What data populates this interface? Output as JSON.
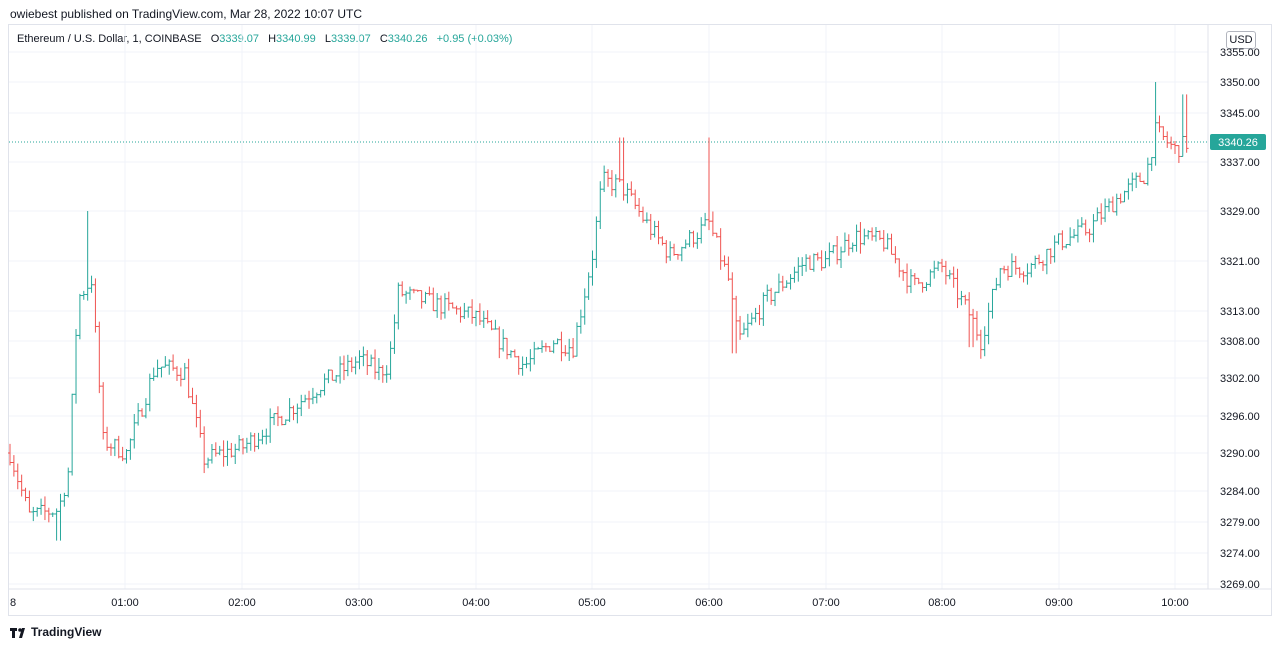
{
  "header": {
    "published_text": "owiebest published on TradingView.com, Mar 28, 2022 10:07 UTC"
  },
  "legend": {
    "symbol": "Ethereum / U.S. Dollar, 1, COINBASE",
    "open_label": "O",
    "open": "3339.07",
    "high_label": "H",
    "high": "3340.99",
    "low_label": "L",
    "low": "3339.07",
    "close_label": "C",
    "close": "3340.26",
    "change": "+0.95 (+0.03%)"
  },
  "currency_button": "USD",
  "footer": {
    "brand": "TradingView"
  },
  "colors": {
    "up": "#26a69a",
    "down": "#ef5350",
    "grid": "#f0f3fa",
    "price_line": "#26a69a"
  },
  "chart_data": {
    "type": "line",
    "style": "ohlc-bars",
    "title": "Ethereum / U.S. Dollar, 1, COINBASE",
    "ylabel": "USD",
    "y_ticks": [
      "3355.00",
      "3350.00",
      "3345.00",
      "3337.00",
      "3329.00",
      "3321.00",
      "3313.00",
      "3308.00",
      "3302.00",
      "3296.00",
      "3290.00",
      "3284.00",
      "3279.00",
      "3274.00",
      "3269.00"
    ],
    "x_ticks": [
      "8",
      "01:00",
      "02:00",
      "03:00",
      "04:00",
      "05:00",
      "06:00",
      "07:00",
      "08:00",
      "09:00",
      "10:00"
    ],
    "current_price": 3340.26,
    "current_price_label": "3340.26",
    "approx_close_path": [
      {
        "t": "00:00",
        "close": 3290
      },
      {
        "t": "00:10",
        "close": 3280
      },
      {
        "t": "00:25",
        "close": 3281
      },
      {
        "t": "00:30",
        "close": 3287
      },
      {
        "t": "00:35",
        "close": 3315
      },
      {
        "t": "00:42",
        "close": 3318
      },
      {
        "t": "00:48",
        "close": 3292
      },
      {
        "t": "01:00",
        "close": 3290
      },
      {
        "t": "01:15",
        "close": 3304
      },
      {
        "t": "01:30",
        "close": 3303
      },
      {
        "t": "01:40",
        "close": 3289
      },
      {
        "t": "02:00",
        "close": 3291
      },
      {
        "t": "02:20",
        "close": 3296
      },
      {
        "t": "02:40",
        "close": 3301
      },
      {
        "t": "03:00",
        "close": 3305
      },
      {
        "t": "03:10",
        "close": 3303
      },
      {
        "t": "03:15",
        "close": 3304
      },
      {
        "t": "03:20",
        "close": 3316
      },
      {
        "t": "03:40",
        "close": 3314
      },
      {
        "t": "04:00",
        "close": 3312
      },
      {
        "t": "04:15",
        "close": 3307
      },
      {
        "t": "04:25",
        "close": 3304
      },
      {
        "t": "04:40",
        "close": 3308
      },
      {
        "t": "04:50",
        "close": 3307
      },
      {
        "t": "05:00",
        "close": 3322
      },
      {
        "t": "05:05",
        "close": 3334
      },
      {
        "t": "05:15",
        "close": 3333
      },
      {
        "t": "05:30",
        "close": 3326
      },
      {
        "t": "05:40",
        "close": 3322
      },
      {
        "t": "06:00",
        "close": 3327
      },
      {
        "t": "06:10",
        "close": 3318
      },
      {
        "t": "06:15",
        "close": 3308
      },
      {
        "t": "06:30",
        "close": 3315
      },
      {
        "t": "06:50",
        "close": 3321
      },
      {
        "t": "07:00",
        "close": 3321
      },
      {
        "t": "07:15",
        "close": 3325
      },
      {
        "t": "07:30",
        "close": 3324
      },
      {
        "t": "07:45",
        "close": 3317
      },
      {
        "t": "08:00",
        "close": 3320
      },
      {
        "t": "08:15",
        "close": 3312
      },
      {
        "t": "08:20",
        "close": 3308
      },
      {
        "t": "08:30",
        "close": 3320
      },
      {
        "t": "08:45",
        "close": 3320
      },
      {
        "t": "09:00",
        "close": 3324
      },
      {
        "t": "09:15",
        "close": 3326
      },
      {
        "t": "09:30",
        "close": 3331
      },
      {
        "t": "09:45",
        "close": 3335
      },
      {
        "t": "09:50",
        "close": 3342
      },
      {
        "t": "10:00",
        "close": 3339
      },
      {
        "t": "10:07",
        "close": 3340.26
      }
    ],
    "notable_extremes": [
      {
        "t": "00:25",
        "low": 3276
      },
      {
        "t": "00:40",
        "high": 3329
      },
      {
        "t": "05:15",
        "high": 3341
      },
      {
        "t": "06:00",
        "high": 3341
      },
      {
        "t": "06:13",
        "low": 3306
      },
      {
        "t": "08:15",
        "low": 3307
      },
      {
        "t": "09:50",
        "high": 3350
      },
      {
        "t": "10:05",
        "high": 3348
      }
    ]
  }
}
